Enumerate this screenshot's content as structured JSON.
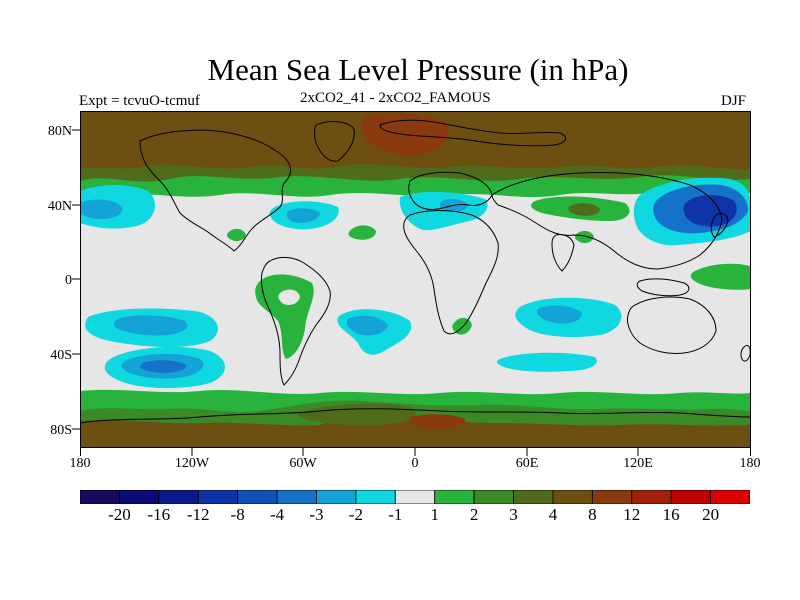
{
  "title": "Mean Sea Level Pressure (in hPa)",
  "subtitle_left": "Expt = tcvuO-tcmuf",
  "subtitle_center": "2xCO2_41 - 2xCO2_FAMOUS",
  "subtitle_right": "DJF",
  "y_ticks": [
    "80N",
    "40N",
    "0",
    "40S",
    "80S"
  ],
  "x_ticks": [
    "180",
    "120W",
    "60W",
    "0",
    "60E",
    "120E",
    "180"
  ],
  "colorbar": {
    "labels": [
      "-20",
      "-16",
      "-12",
      "-8",
      "-4",
      "-3",
      "-2",
      "-1",
      "1",
      "2",
      "3",
      "4",
      "8",
      "12",
      "16",
      "20"
    ],
    "colors": [
      "#1a0a5e",
      "#0b0b78",
      "#0c1a8f",
      "#0f33a6",
      "#1052b8",
      "#1472c8",
      "#14a3d6",
      "#0fd8e0",
      "#e6e6e6",
      "#27b33c",
      "#3b8a27",
      "#4f6b1b",
      "#6e4f12",
      "#8a3a0e",
      "#a0200a",
      "#c00000",
      "#dd0000"
    ]
  },
  "map_colors": {
    "neutral": "#e6e6e6",
    "green_light": "#27b33c",
    "green_mid": "#3b8a27",
    "olive": "#4f6b1b",
    "brown": "#6e4f12",
    "brown_red": "#8a3a0e",
    "cyan": "#0fd8e0",
    "blue_light": "#14a3d6",
    "blue_mid": "#1472c8",
    "blue_dark": "#0f33a6",
    "coast": "#000000"
  }
}
